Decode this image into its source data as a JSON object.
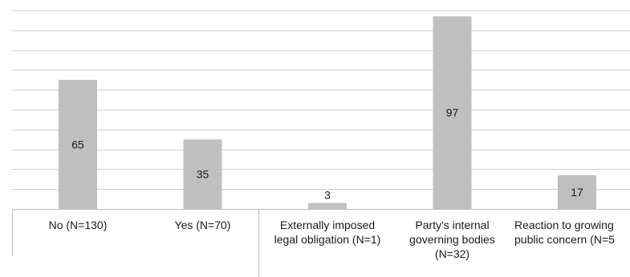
{
  "chart_data": {
    "type": "bar",
    "categories": [
      "No (N=130)",
      "Yes (N=70)",
      "Externally imposed\nlegal obligation (N=1)",
      "Party's internal\ngoverning bodies\n(N=32)",
      "Reaction to growing\npublic concern (N=5"
    ],
    "values": [
      65,
      35,
      3,
      97,
      17
    ],
    "data_labels": [
      "65",
      "35",
      "3",
      "97",
      "17"
    ],
    "ylim": [
      0,
      100
    ],
    "grid": true,
    "legend": "none",
    "colors": {
      "bar": "#bfbfbf",
      "grid": "#d0d0d0",
      "axis": "#bdbdbd"
    }
  }
}
